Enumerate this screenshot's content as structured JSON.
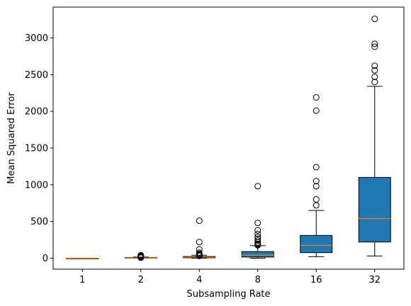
{
  "chart_data": {
    "type": "boxplot",
    "title": "",
    "xlabel": "Subsampling Rate",
    "ylabel": "Mean Squared Error",
    "ylim": [
      -150,
      3420
    ],
    "yticks": [
      0,
      500,
      1000,
      1500,
      2000,
      2500,
      3000
    ],
    "grid": false,
    "box_color": "#1f77b4",
    "median_color": "#ff7f0e",
    "categories": [
      "1",
      "2",
      "4",
      "8",
      "16",
      "32"
    ],
    "boxes": [
      {
        "label": "1",
        "whisker_low": 0,
        "q1": 0,
        "median": 0,
        "q3": 0,
        "whisker_high": 0,
        "fliers": []
      },
      {
        "label": "2",
        "whisker_low": 0,
        "q1": 1,
        "median": 3,
        "q3": 8,
        "whisker_high": 15,
        "fliers": [
          5,
          15,
          20,
          25,
          30,
          35,
          40
        ]
      },
      {
        "label": "4",
        "whisker_low": 0,
        "q1": 5,
        "median": 12,
        "q3": 22,
        "whisker_high": 40,
        "fliers": [
          30,
          40,
          50,
          60,
          75,
          120,
          220,
          510
        ]
      },
      {
        "label": "8",
        "whisker_low": 0,
        "q1": 15,
        "median": 40,
        "q3": 90,
        "whisker_high": 170,
        "fliers": [
          175,
          185,
          195,
          215,
          240,
          265,
          290,
          330,
          380,
          480,
          980
        ]
      },
      {
        "label": "16",
        "whisker_low": 20,
        "q1": 75,
        "median": 175,
        "q3": 310,
        "whisker_high": 650,
        "fliers": [
          720,
          800,
          980,
          1050,
          1240,
          2010,
          2190
        ]
      },
      {
        "label": "32",
        "whisker_low": 30,
        "q1": 220,
        "median": 540,
        "q3": 1100,
        "whisker_high": 2340,
        "fliers": [
          2400,
          2470,
          2560,
          2620,
          2880,
          2920,
          3260
        ]
      }
    ]
  }
}
